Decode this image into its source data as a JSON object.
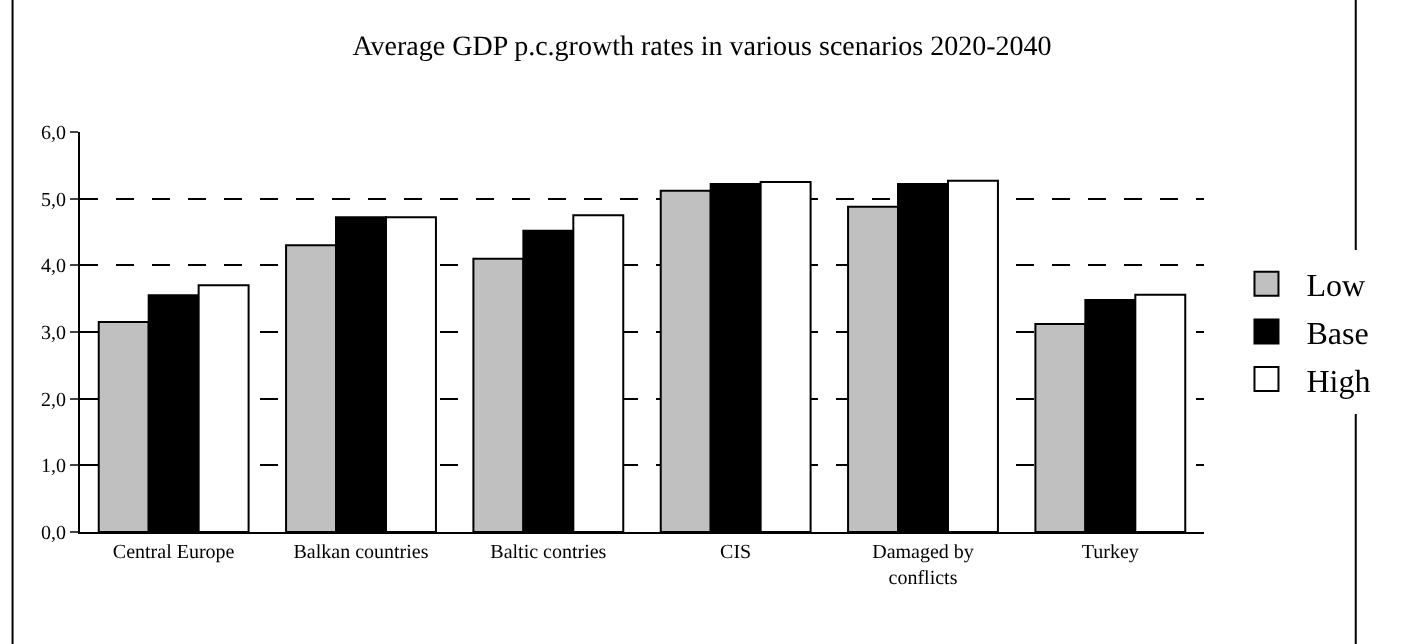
{
  "chart_data": {
    "type": "bar",
    "title": "Average GDP p.c.growth rates in various scenarios 2020-2040",
    "categories": [
      "Central Europe",
      "Balkan countries",
      "Baltic contries",
      "CIS",
      "Damaged by conflicts",
      "Turkey"
    ],
    "series": [
      {
        "name": "Low",
        "color": "#c0c0c0",
        "values": [
          3.15,
          4.3,
          4.1,
          5.12,
          4.88,
          3.12
        ]
      },
      {
        "name": "Base",
        "color": "#000000",
        "values": [
          3.55,
          4.72,
          4.52,
          5.22,
          5.22,
          3.48
        ]
      },
      {
        "name": "High",
        "color": "#ffffff",
        "values": [
          3.7,
          4.72,
          4.75,
          5.25,
          5.27,
          3.56
        ]
      }
    ],
    "ylim": [
      0,
      6
    ],
    "yticks": [
      {
        "value": 0,
        "label": "0,0"
      },
      {
        "value": 1,
        "label": "1,0"
      },
      {
        "value": 2,
        "label": "2,0"
      },
      {
        "value": 3,
        "label": "3,0"
      },
      {
        "value": 4,
        "label": "4,0"
      },
      {
        "value": 5,
        "label": "5,0"
      },
      {
        "value": 6,
        "label": "6,0"
      }
    ],
    "grid": "y",
    "legend": "right"
  }
}
